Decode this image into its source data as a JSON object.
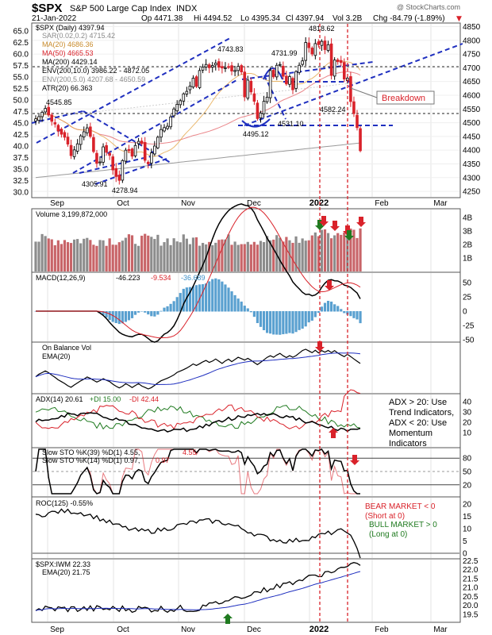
{
  "header": {
    "symbol": "$SPX",
    "name": "S&P 500 Large Cap Index",
    "exchange": "INDX",
    "credit": "@ StockCharts.com",
    "date": "21-Jan-2022",
    "op": "Op 4471.38",
    "hi": "Hi 4494.52",
    "lo": "Lo 4395.34",
    "cl": "Cl 4397.94",
    "vol": "Vol 3.2B",
    "chg": "Chg -84.79 (-1.89%)",
    "chg_arrow": "▼"
  },
  "legend": {
    "price": "$SPX (Daily) 4397.94",
    "sar": "SAR(0.02,0.2) 4715.42",
    "ma20": "MA(20) 4686.36",
    "ma50": "MA(50) 4665.53",
    "ma200": "MA(200) 4429.14",
    "env200_10": "ENV(200,10.0) 3986.22 - 4872.05",
    "env200_5": "ENV(200,5.0) 4207.68 - 4650.59",
    "atr": "ATR(20) 66.363"
  },
  "annotations": {
    "breakdown": "Breakdown",
    "p4818": "4818.62",
    "p4743": "4743.83",
    "p4731": "4731.99",
    "p4545": "4545.85",
    "p4582": "4582.24",
    "p4531": "4531.10",
    "p4495": "4495.12",
    "p4305": "4305.91",
    "p4278": "4278.94"
  },
  "volume": {
    "label": "Volume 3,199,872,000",
    "ticks": [
      "4B",
      "3B",
      "2B",
      "1B"
    ]
  },
  "macd": {
    "label": "MACD(12,26,9)",
    "v1": "-46.223",
    "v2": "-9.534",
    "v3": "-36.689",
    "ticks": [
      "50",
      "25",
      "0",
      "-25",
      "-50"
    ]
  },
  "obv": {
    "label": "On Balance Vol",
    "ema": "EMA(20)"
  },
  "adx": {
    "label": "ADX(14) 20.61",
    "pdi": "+DI 15.00",
    "mdi": "-DI 42.44",
    "ticks": [
      "40",
      "30",
      "20",
      "10"
    ],
    "note": [
      "ADX > 20: Use",
      "Trend Indicators,",
      "ADX < 20: Use",
      "Momentum",
      "Indicators"
    ]
  },
  "sto": {
    "label1": "Slow STO %K(39) %D(1) 4.55,",
    "label1_red": "4.55",
    "label2": "Slow STO %K(14) %D(1) 0.97,",
    "label2_red": "0.97",
    "ticks": [
      "80",
      "50",
      "20"
    ]
  },
  "roc": {
    "label": "ROC(125) -0.55%",
    "ticks": [
      "20",
      "15",
      "10",
      "5",
      "0"
    ],
    "bear": [
      "BEAR MARKET < 0",
      "(Short at 0)"
    ],
    "bull": [
      "BULL MARKET > 0",
      "(Long at 0)"
    ]
  },
  "ratio": {
    "label": "$SPX:IWM 22.33",
    "ema": "EMA(20) 21.75",
    "ticks": [
      "22.5",
      "22.0",
      "21.5",
      "21.0",
      "20.5",
      "20.0",
      "19.5"
    ]
  },
  "colors": {
    "up": "#000000",
    "down": "#d9222a",
    "blue": "#1f2fbf",
    "ma50": "#d9222a",
    "ma20": "#e5a64a",
    "vol_up": "#8c8c8c",
    "vol_down": "#c86468",
    "macd_hist": "#3c8fc8",
    "green": "#1f7a1f"
  },
  "chart_data": {
    "type": "line",
    "title": "$SPX S&P 500 Large Cap Index INDX (Daily)",
    "x_labels": [
      "Sep",
      "Oct",
      "Nov",
      "Dec",
      "2022",
      "Feb",
      "Mar"
    ],
    "y_right_ticks": [
      4250,
      4300,
      4350,
      4400,
      4450,
      4500,
      4550,
      4600,
      4650,
      4700,
      4750,
      4800,
      4850
    ],
    "y_left_ticks": [
      30.0,
      32.5,
      35.0,
      37.5,
      40.0,
      42.5,
      45.0,
      47.5,
      50.0,
      52.5,
      55.0,
      57.5,
      60.0,
      62.5,
      65.0
    ],
    "ylim": [
      4230,
      4860
    ],
    "series": [
      {
        "name": "$SPX (Daily)",
        "values": [
          4514,
          4522,
          4538,
          4552,
          4528,
          4505,
          4495,
          4470,
          4458,
          4447,
          4422,
          4380,
          4401,
          4423,
          4452,
          4467,
          4481,
          4450,
          4395,
          4352,
          4357,
          4412,
          4392,
          4381,
          4328,
          4304,
          4290,
          4362,
          4400,
          4398,
          4378,
          4417,
          4432,
          4424,
          4363,
          4350,
          4390,
          4415,
          4447,
          4475,
          4482,
          4487,
          4521,
          4550,
          4567,
          4580,
          4605,
          4614,
          4633,
          4662,
          4632,
          4690,
          4702,
          4712,
          4700,
          4708,
          4717,
          4702,
          4699,
          4700,
          4701,
          4688,
          4690,
          4705,
          4685,
          4594,
          4655,
          4612,
          4578,
          4515,
          4535,
          4578,
          4593,
          4690,
          4667,
          4709,
          4712,
          4669,
          4641,
          4668,
          4620,
          4686,
          4709,
          4725,
          4792,
          4773,
          4750,
          4788,
          4784,
          4796,
          4766,
          4784,
          4672,
          4728,
          4722,
          4719,
          4659,
          4662,
          4577,
          4533,
          4482,
          4398
        ]
      }
    ]
  }
}
